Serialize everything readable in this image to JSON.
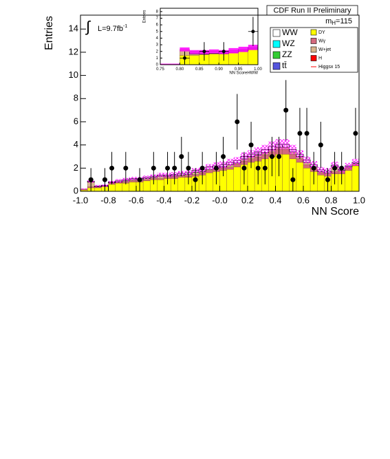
{
  "chart_data": [
    {
      "type": "histogram",
      "title": "CDF Run II Preliminary",
      "ylabel": "Entries",
      "xlabel": "NN Score",
      "mass_label": {
        "text": "m",
        "sub": "H",
        "rest": "=115"
      },
      "lumi_label": {
        "symbol": "∫",
        "text": "L=9.7fb",
        "sup": "-1"
      },
      "xlim": [
        -1,
        1
      ],
      "ylim": [
        0,
        15.2
      ],
      "xticks": [
        {
          "value": -1,
          "label": "-1.0"
        },
        -0.8,
        -0.6,
        -0.4,
        -0.2,
        {
          "value": 0,
          "label": "-0.0"
        },
        0.2,
        0.4,
        0.6,
        0.8,
        {
          "value": 1,
          "label": "1.0"
        }
      ],
      "yticks": [
        0,
        2,
        4,
        6,
        8,
        10,
        12,
        14
      ],
      "bins": [
        -1,
        -0.95,
        -0.9,
        -0.85,
        -0.8,
        -0.75,
        -0.7,
        -0.65,
        -0.6,
        -0.55,
        -0.5,
        -0.45,
        -0.4,
        -0.35,
        -0.3,
        -0.25,
        -0.2,
        -0.15,
        -0.1,
        -0.05,
        0,
        0.05,
        0.1,
        0.15,
        0.2,
        0.25,
        0.3,
        0.35,
        0.4,
        0.45,
        0.5,
        0.55,
        0.6,
        0.65,
        0.7,
        0.75,
        0.8,
        0.85,
        0.9,
        0.95,
        1
      ],
      "series": [
        {
          "name": "DY",
          "color": "#ffff00",
          "values": [
            0.1,
            0.3,
            0.3,
            0.4,
            0.6,
            0.7,
            0.7,
            0.8,
            0.8,
            0.9,
            1.0,
            1.0,
            1.1,
            1.1,
            1.2,
            1.2,
            1.3,
            1.4,
            1.6,
            1.7,
            1.8,
            1.9,
            2.1,
            2.3,
            2.5,
            2.6,
            2.8,
            3.0,
            3.2,
            3.2,
            2.8,
            2.5,
            2.0,
            1.7,
            1.4,
            1.3,
            1.5,
            1.5,
            1.8,
            2.2
          ]
        },
        {
          "name": "Wγ",
          "color": "#d46a7e",
          "values": [
            0.05,
            0.1,
            0.05,
            0.05,
            0.1,
            0.1,
            0.1,
            0.1,
            0.1,
            0.1,
            0.1,
            0.1,
            0.1,
            0.15,
            0.1,
            0.15,
            0.15,
            0.2,
            0.2,
            0.2,
            0.2,
            0.2,
            0.25,
            0.3,
            0.3,
            0.35,
            0.35,
            0.4,
            0.4,
            0.4,
            0.4,
            0.3,
            0.3,
            0.3,
            0.2,
            0.2,
            0.2,
            0.2,
            0.2,
            0.1
          ]
        },
        {
          "name": "W+jet",
          "color": "#d8b48c",
          "values": [
            0.05,
            0.4,
            0.05,
            0,
            0.05,
            0,
            0.1,
            0.1,
            0.1,
            0.1,
            0.1,
            0.2,
            0.1,
            0.1,
            0.1,
            0.1,
            0.2,
            0.1,
            0.1,
            0.1,
            0.1,
            0.2,
            0.1,
            0.2,
            0.2,
            0.2,
            0.2,
            0.2,
            0.2,
            0.2,
            0.2,
            0.2,
            0.2,
            0.1,
            0.1,
            0.1,
            0.4,
            0.1,
            0.1,
            0.1
          ]
        },
        {
          "name": "WW",
          "color": "#ffffff",
          "values": [
            0,
            0.05,
            0.05,
            0.05,
            0.05,
            0.1,
            0.1,
            0.1,
            0.1,
            0.1,
            0.1,
            0.1,
            0.1,
            0.1,
            0.15,
            0.15,
            0.15,
            0.15,
            0.2,
            0.2,
            0.2,
            0.2,
            0.2,
            0.2,
            0.2,
            0.25,
            0.25,
            0.25,
            0.25,
            0.25,
            0.2,
            0.2,
            0.2,
            0.2,
            0.15,
            0.15,
            0.15,
            0.1,
            0.1,
            0.1
          ]
        }
      ],
      "legend_only": [
        {
          "name": "WZ",
          "color": "#00ffff"
        },
        {
          "name": "ZZ",
          "color": "#33cc33"
        },
        {
          "name": "tt̄",
          "color": "#5555dd"
        },
        {
          "name": "H",
          "color": "#ff0000"
        },
        {
          "name": "Higgsx 15",
          "color": "#ff0000"
        }
      ],
      "uncertainty": [
        0.05,
        0.1,
        0.1,
        0.1,
        0.1,
        0.15,
        0.15,
        0.15,
        0.15,
        0.15,
        0.15,
        0.2,
        0.2,
        0.2,
        0.2,
        0.2,
        0.2,
        0.25,
        0.25,
        0.3,
        0.3,
        0.3,
        0.3,
        0.35,
        0.35,
        0.4,
        0.4,
        0.45,
        0.45,
        0.45,
        0.4,
        0.35,
        0.3,
        0.3,
        0.25,
        0.25,
        0.3,
        0.25,
        0.25,
        0.3
      ],
      "band_color": "#ff00ff",
      "band_fill": "hatch",
      "points": {
        "x": [
          -0.925,
          -0.825,
          -0.775,
          -0.675,
          -0.575,
          -0.475,
          -0.375,
          -0.325,
          -0.275,
          -0.225,
          -0.175,
          -0.125,
          -0.025,
          0.025,
          0.125,
          0.175,
          0.225,
          0.275,
          0.325,
          0.375,
          0.425,
          0.475,
          0.525,
          0.575,
          0.625,
          0.675,
          0.725,
          0.775,
          0.825,
          0.875,
          0.975
        ],
        "values": [
          1,
          1,
          2,
          2,
          1,
          2,
          2,
          2,
          3,
          2,
          1,
          2,
          2,
          3,
          6,
          2,
          4,
          2,
          2,
          3,
          3,
          7,
          1,
          5,
          5,
          2,
          4,
          1,
          2,
          2,
          5
        ],
        "errors": [
          1,
          1,
          1.4,
          1.4,
          1,
          1.4,
          1.4,
          1.4,
          1.7,
          1.4,
          1,
          1.4,
          1.4,
          1.7,
          2.4,
          1.4,
          2,
          1.4,
          1.4,
          1.7,
          1.7,
          2.6,
          1,
          2.2,
          2.2,
          1.4,
          2,
          1,
          1.4,
          1.4,
          2.2
        ]
      }
    },
    {
      "type": "histogram",
      "ylabel": "Entries",
      "xlabel": "NN ScoreHWW",
      "xlim": [
        0.75,
        1
      ],
      "ylim": [
        0,
        8.5
      ],
      "xticks": [
        0.75,
        {
          "value": 0.8,
          "label": "0.80"
        },
        0.85,
        {
          "value": 0.9,
          "label": "0.90"
        },
        0.95,
        {
          "value": 1,
          "label": "1.00"
        }
      ],
      "yticks": [
        0,
        1,
        2,
        3,
        4,
        5,
        6,
        7,
        8
      ],
      "bins": [
        0.75,
        0.775,
        0.8,
        0.825,
        0.85,
        0.875,
        0.9,
        0.925,
        0.95,
        0.975,
        1
      ],
      "series": [
        {
          "color": "#ffff00",
          "values": [
            0.1,
            0.1,
            1.4,
            1.4,
            1.5,
            1.6,
            1.6,
            1.8,
            2.0,
            2.3
          ]
        },
        {
          "color": "#d8b48c",
          "values": [
            0,
            0,
            0.9,
            0.2,
            0.1,
            0.1,
            0.1,
            0.1,
            0.1,
            0.1
          ]
        },
        {
          "color": "#ffffff",
          "values": [
            0,
            0,
            0,
            0.3,
            0.3,
            0.3,
            0.2,
            0.2,
            0.2,
            0.2
          ]
        }
      ],
      "uncertainty": [
        0.05,
        0.05,
        0.3,
        0.3,
        0.3,
        0.3,
        0.3,
        0.4,
        0.4,
        0.4
      ],
      "band_color": "#ff00ff",
      "band_fill": "solid",
      "points": {
        "x": [
          0.8125,
          0.8625,
          0.9125,
          0.9875
        ],
        "values": [
          1,
          2,
          2,
          5
        ],
        "errors": [
          1,
          1.4,
          1.4,
          2.2
        ]
      }
    }
  ]
}
